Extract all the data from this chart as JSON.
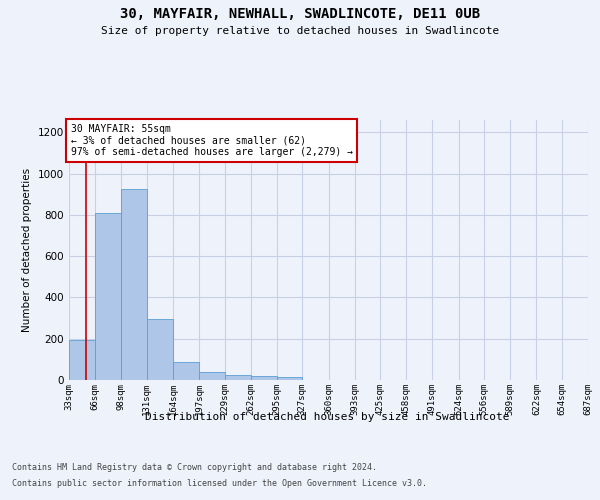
{
  "title": "30, MAYFAIR, NEWHALL, SWADLINCOTE, DE11 0UB",
  "subtitle": "Size of property relative to detached houses in Swadlincote",
  "xlabel": "Distribution of detached houses by size in Swadlincote",
  "ylabel": "Number of detached properties",
  "bar_color": "#aec6e8",
  "bar_edge_color": "#5a9fd4",
  "annotation_line_color": "#cc0000",
  "annotation_box_color": "#cc0000",
  "annotation_text": "30 MAYFAIR: 55sqm\n← 3% of detached houses are smaller (62)\n97% of semi-detached houses are larger (2,279) →",
  "property_size_sqm": 55,
  "bin_edges": [
    33,
    66,
    98,
    131,
    164,
    197,
    229,
    262,
    295,
    327,
    360,
    393,
    425,
    458,
    491,
    524,
    556,
    589,
    622,
    654,
    687
  ],
  "bin_labels": [
    "33sqm",
    "66sqm",
    "98sqm",
    "131sqm",
    "164sqm",
    "197sqm",
    "229sqm",
    "262sqm",
    "295sqm",
    "327sqm",
    "360sqm",
    "393sqm",
    "425sqm",
    "458sqm",
    "491sqm",
    "524sqm",
    "556sqm",
    "589sqm",
    "622sqm",
    "654sqm",
    "687sqm"
  ],
  "bar_heights": [
    195,
    810,
    925,
    295,
    88,
    37,
    22,
    18,
    13,
    0,
    0,
    0,
    0,
    0,
    0,
    0,
    0,
    0,
    0,
    0
  ],
  "ylim": [
    0,
    1260
  ],
  "yticks": [
    0,
    200,
    400,
    600,
    800,
    1000,
    1200
  ],
  "footer_line1": "Contains HM Land Registry data © Crown copyright and database right 2024.",
  "footer_line2": "Contains public sector information licensed under the Open Government Licence v3.0.",
  "background_color": "#eef2fb",
  "plot_background": "#eef2fb",
  "grid_color": "#c8d0e8"
}
